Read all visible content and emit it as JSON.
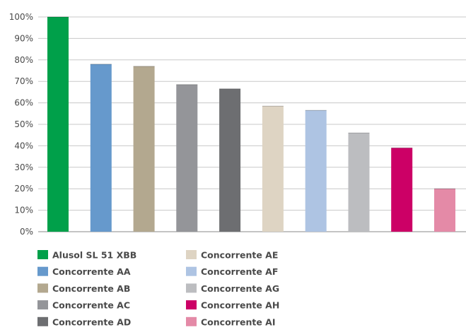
{
  "chart_data": {
    "type": "bar",
    "categories": [
      "Alusol SL 51 XBB",
      "Concorrente AA",
      "Concorrente AB",
      "Concorrente AC",
      "Concorrente AD",
      "Concorrente AE",
      "Concorrente AF",
      "Concorrente AG",
      "Concorrente AH",
      "Concorrente AI"
    ],
    "values": [
      100,
      78,
      77,
      68.5,
      66.5,
      58.5,
      56.5,
      46,
      39,
      20
    ],
    "colors": [
      "#00a04a",
      "#6699cc",
      "#b3a88f",
      "#949599",
      "#6d6e71",
      "#ded4c3",
      "#aec4e3",
      "#bcbdc0",
      "#cc0066",
      "#e48aa7"
    ],
    "ylim": [
      0,
      100
    ],
    "yticks": [
      "0%",
      "10%",
      "20%",
      "30%",
      "40%",
      "50%",
      "60%",
      "70%",
      "80%",
      "90%",
      "100%"
    ],
    "grid": true,
    "legend": "bottom",
    "title": "",
    "xlabel": "",
    "ylabel": ""
  }
}
